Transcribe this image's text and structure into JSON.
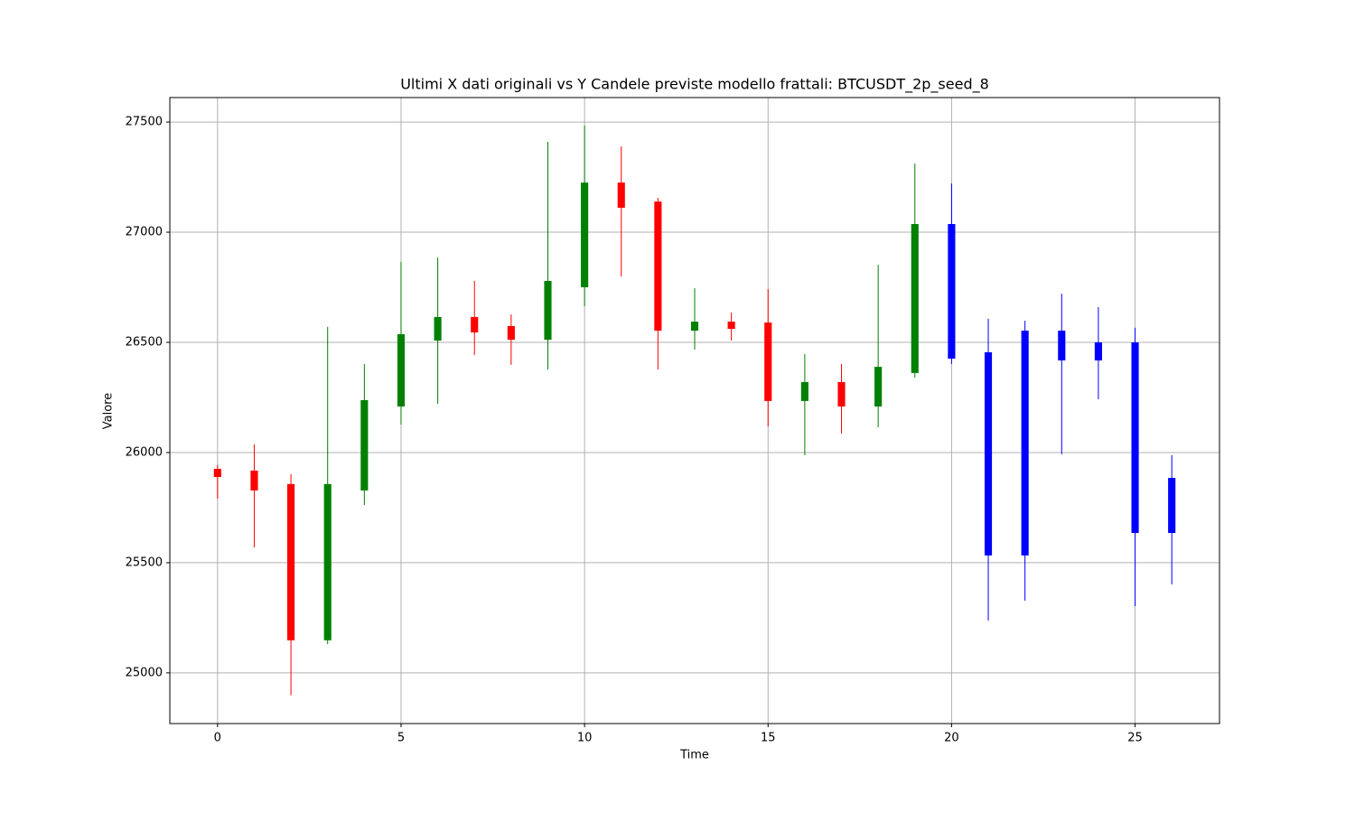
{
  "chart_data": {
    "type": "candlestick",
    "title": "Ultimi X dati originali vs Y Candele previste modello frattali: BTCUSDT_2p_seed_8",
    "xlabel": "Time",
    "ylabel": "Valore",
    "xlim": [
      -1.3,
      27.3
    ],
    "ylim": [
      24770,
      27611
    ],
    "xticks": [
      0,
      5,
      10,
      15,
      20,
      25
    ],
    "yticks": [
      25000,
      25500,
      26000,
      26500,
      27000,
      27500
    ],
    "grid": true,
    "x": [
      0,
      1,
      2,
      3,
      4,
      5,
      6,
      7,
      8,
      9,
      10,
      11,
      12,
      13,
      14,
      15,
      16,
      17,
      18,
      19,
      20,
      21,
      22,
      23,
      24,
      25,
      26
    ],
    "open": [
      25926,
      25918,
      25857,
      25148,
      25828,
      26209,
      26508,
      26615,
      26574,
      26512,
      26750,
      27225,
      27139,
      26553,
      26594,
      26590,
      26234,
      26320,
      26209,
      26361,
      27037,
      26455,
      25533,
      26553,
      26418,
      26500,
      25885
    ],
    "high": [
      25943,
      26037,
      25902,
      26570,
      26402,
      26865,
      26885,
      26779,
      26627,
      27410,
      27484,
      27389,
      27156,
      26746,
      26635,
      26742,
      26447,
      26402,
      26852,
      27311,
      27221,
      26607,
      26598,
      26721,
      26660,
      26566,
      25988
    ],
    "low": [
      25791,
      25570,
      24898,
      25131,
      25762,
      26127,
      26221,
      26443,
      26398,
      26377,
      26664,
      26799,
      26377,
      26467,
      26508,
      26119,
      25988,
      26086,
      26115,
      26340,
      26402,
      25238,
      25328,
      25992,
      26242,
      25303,
      25402
    ],
    "close": [
      25889,
      25828,
      25148,
      25857,
      26238,
      26537,
      26615,
      26545,
      26512,
      26779,
      27225,
      27111,
      26553,
      26594,
      26561,
      26234,
      26320,
      26209,
      26389,
      27037,
      26426,
      25533,
      26553,
      26418,
      26500,
      25635,
      25635
    ],
    "colors": [
      "red",
      "red",
      "red",
      "green",
      "green",
      "green",
      "green",
      "red",
      "red",
      "green",
      "green",
      "red",
      "red",
      "green",
      "red",
      "red",
      "green",
      "red",
      "green",
      "green",
      "blue",
      "blue",
      "blue",
      "blue",
      "blue",
      "blue",
      "blue"
    ]
  }
}
